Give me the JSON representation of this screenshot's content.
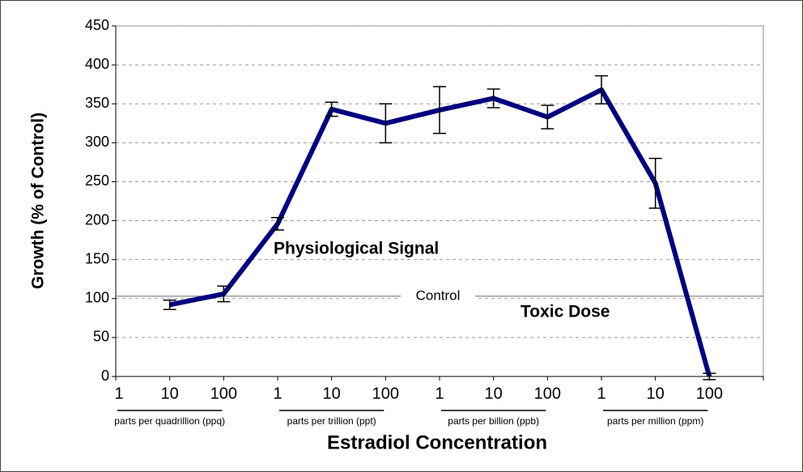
{
  "chart_data": {
    "type": "line",
    "y_label": "Growth (% of Control)",
    "x_label": "Estradiol Concentration",
    "categories": [
      "1",
      "10",
      "100",
      "1",
      "10",
      "100",
      "1",
      "10",
      "100",
      "1",
      "10",
      "100",
      null
    ],
    "groups": [
      "parts per quadrillion (ppq)",
      "parts per trillion (ppt)",
      "parts per billion (ppb)",
      "parts per million (ppm)"
    ],
    "series": [
      {
        "color": "#000080",
        "values": [
          null,
          92,
          106,
          196,
          343,
          325,
          342,
          357,
          333,
          368,
          248,
          0,
          null
        ],
        "errors": [
          null,
          6,
          10,
          8,
          9,
          25,
          30,
          12,
          15,
          18,
          32,
          4,
          null
        ]
      }
    ],
    "control_line": {
      "value": 103,
      "label": "Control"
    },
    "annotations": [
      "Physiological Signal",
      "Toxic Dose"
    ],
    "ylim": [
      0,
      450
    ],
    "yticks": [
      0,
      50,
      100,
      150,
      200,
      250,
      300,
      350,
      400,
      450
    ],
    "grid": true
  }
}
